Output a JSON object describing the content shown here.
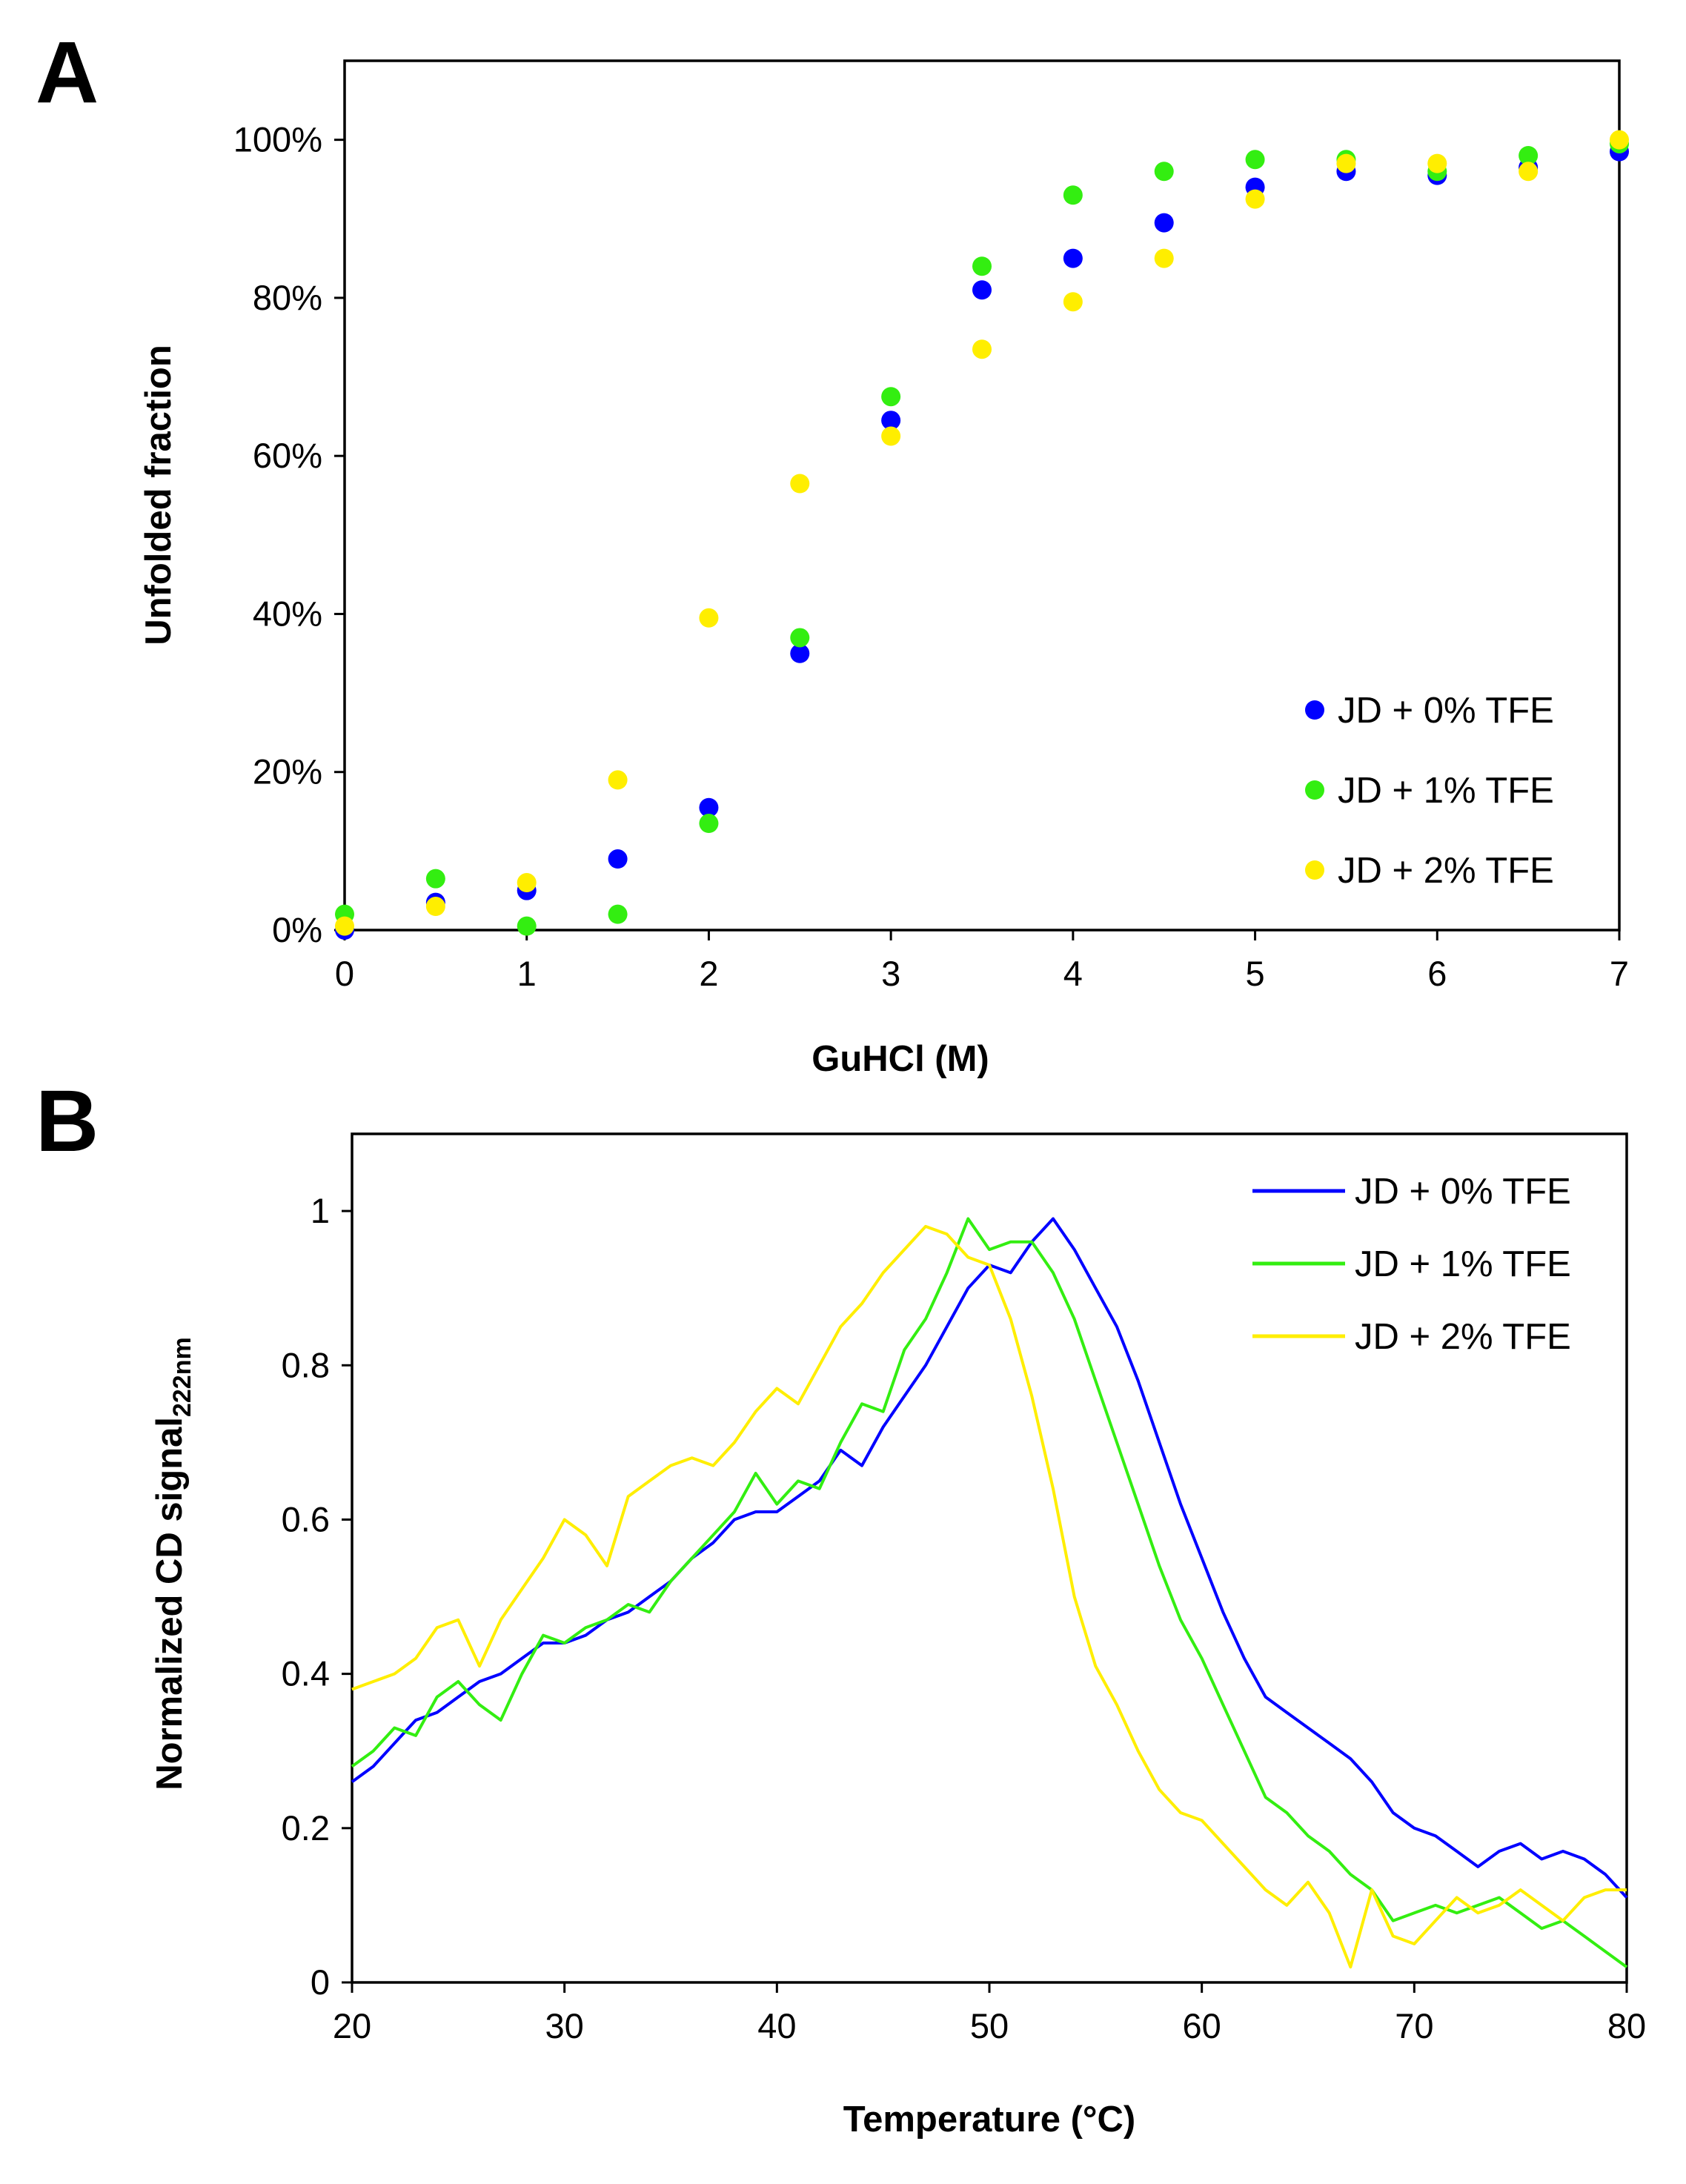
{
  "colors": {
    "blue": "#0000ff",
    "green": "#33ee11",
    "yellow": "#ffee00",
    "frame": "#000000"
  },
  "chart_data": [
    {
      "panel_label": "A",
      "type": "scatter",
      "xlabel": "GuHCl (M)",
      "ylabel": "Unfolded fraction",
      "xlim": [
        0,
        7
      ],
      "ylim": [
        0,
        1.1
      ],
      "x_ticks": [
        0,
        1,
        2,
        3,
        4,
        5,
        6,
        7
      ],
      "x_tick_labels": [
        "0",
        "1",
        "2",
        "3",
        "4",
        "5",
        "6",
        "7"
      ],
      "y_ticks": [
        0,
        0.2,
        0.4,
        0.6,
        0.8,
        1.0
      ],
      "y_tick_labels": [
        "0%",
        "20%",
        "40%",
        "60%",
        "80%",
        "100%"
      ],
      "grid": false,
      "legend_position": "bottom-right",
      "x": [
        0,
        0.5,
        1,
        1.5,
        2,
        2.5,
        3,
        3.5,
        4,
        4.5,
        5,
        5.5,
        6,
        6.5,
        7
      ],
      "series": [
        {
          "name": "JD + 0% TFE",
          "color": "blue",
          "values": [
            0.0,
            0.035,
            0.05,
            0.09,
            0.155,
            0.35,
            0.645,
            0.81,
            0.85,
            0.895,
            0.94,
            0.96,
            0.955,
            0.965,
            0.985
          ]
        },
        {
          "name": "JD + 1% TFE",
          "color": "green",
          "values": [
            0.02,
            0.065,
            0.005,
            0.02,
            0.135,
            0.37,
            0.675,
            0.84,
            0.93,
            0.96,
            0.975,
            0.975,
            0.96,
            0.98,
            0.995
          ]
        },
        {
          "name": "JD + 2% TFE",
          "color": "yellow",
          "values": [
            0.005,
            0.03,
            0.06,
            0.19,
            0.395,
            0.565,
            0.625,
            0.735,
            0.795,
            0.85,
            0.925,
            0.97,
            0.97,
            0.96,
            1.0
          ]
        }
      ]
    },
    {
      "panel_label": "B",
      "type": "line",
      "xlabel": "Temperature (°C)",
      "ylabel_main": "Normalized CD signal",
      "ylabel_sub": "222nm",
      "xlim": [
        20,
        80
      ],
      "ylim": [
        0,
        1.1
      ],
      "x_ticks": [
        20,
        30,
        40,
        50,
        60,
        70,
        80
      ],
      "x_tick_labels": [
        "20",
        "30",
        "40",
        "50",
        "60",
        "70",
        "80"
      ],
      "y_ticks": [
        0,
        0.2,
        0.4,
        0.6,
        0.8,
        1.0
      ],
      "y_tick_labels": [
        "0",
        "0.2",
        "0.4",
        "0.6",
        "0.8",
        "1"
      ],
      "grid": false,
      "legend_position": "top-right",
      "series": [
        {
          "name": "JD + 0% TFE",
          "color": "blue",
          "x": [
            20,
            21,
            22,
            23,
            24,
            25,
            26,
            27,
            28,
            29,
            30,
            31,
            32,
            33,
            34,
            35,
            36,
            37,
            38,
            39,
            40,
            41,
            42,
            43,
            44,
            45,
            46,
            47,
            48,
            49,
            50,
            51,
            52,
            53,
            54,
            55,
            56,
            57,
            58,
            59,
            60,
            61,
            62,
            63,
            64,
            65,
            66,
            67,
            68,
            69,
            70,
            71,
            72,
            73,
            74,
            75,
            76,
            77,
            78,
            79,
            80
          ],
          "y": [
            0.26,
            0.28,
            0.31,
            0.34,
            0.35,
            0.37,
            0.39,
            0.4,
            0.42,
            0.44,
            0.44,
            0.45,
            0.47,
            0.48,
            0.5,
            0.52,
            0.55,
            0.57,
            0.6,
            0.61,
            0.61,
            0.63,
            0.65,
            0.69,
            0.67,
            0.72,
            0.76,
            0.8,
            0.85,
            0.9,
            0.93,
            0.92,
            0.96,
            0.99,
            0.95,
            0.9,
            0.85,
            0.78,
            0.7,
            0.62,
            0.55,
            0.48,
            0.42,
            0.37,
            0.35,
            0.33,
            0.31,
            0.29,
            0.26,
            0.22,
            0.2,
            0.19,
            0.17,
            0.15,
            0.17,
            0.18,
            0.16,
            0.17,
            0.16,
            0.14,
            0.11
          ]
        },
        {
          "name": "JD + 1% TFE",
          "color": "green",
          "x": [
            20,
            21,
            22,
            23,
            24,
            25,
            26,
            27,
            28,
            29,
            30,
            31,
            32,
            33,
            34,
            35,
            36,
            37,
            38,
            39,
            40,
            41,
            42,
            43,
            44,
            45,
            46,
            47,
            48,
            49,
            50,
            51,
            52,
            53,
            54,
            55,
            56,
            57,
            58,
            59,
            60,
            61,
            62,
            63,
            64,
            65,
            66,
            67,
            68,
            69,
            70,
            71,
            72,
            73,
            74,
            75,
            76,
            77,
            78,
            79,
            80
          ],
          "y": [
            0.28,
            0.3,
            0.33,
            0.32,
            0.37,
            0.39,
            0.36,
            0.34,
            0.4,
            0.45,
            0.44,
            0.46,
            0.47,
            0.49,
            0.48,
            0.52,
            0.55,
            0.58,
            0.61,
            0.66,
            0.62,
            0.65,
            0.64,
            0.7,
            0.75,
            0.74,
            0.82,
            0.86,
            0.92,
            0.99,
            0.95,
            0.96,
            0.96,
            0.92,
            0.86,
            0.78,
            0.7,
            0.62,
            0.54,
            0.47,
            0.42,
            0.36,
            0.3,
            0.24,
            0.22,
            0.19,
            0.17,
            0.14,
            0.12,
            0.08,
            0.09,
            0.1,
            0.09,
            0.1,
            0.11,
            0.09,
            0.07,
            0.08,
            0.06,
            0.04,
            0.02
          ]
        },
        {
          "name": "JD + 2% TFE",
          "color": "yellow",
          "x": [
            20,
            21,
            22,
            23,
            24,
            25,
            26,
            27,
            28,
            29,
            30,
            31,
            32,
            33,
            34,
            35,
            36,
            37,
            38,
            39,
            40,
            41,
            42,
            43,
            44,
            45,
            46,
            47,
            48,
            49,
            50,
            51,
            52,
            53,
            54,
            55,
            56,
            57,
            58,
            59,
            60,
            61,
            62,
            63,
            64,
            65,
            66,
            67,
            68,
            69,
            70,
            71,
            72,
            73,
            74,
            75,
            76,
            77,
            78,
            79,
            80
          ],
          "y": [
            0.38,
            0.39,
            0.4,
            0.42,
            0.46,
            0.47,
            0.41,
            0.47,
            0.51,
            0.55,
            0.6,
            0.58,
            0.54,
            0.63,
            0.65,
            0.67,
            0.68,
            0.67,
            0.7,
            0.74,
            0.77,
            0.75,
            0.8,
            0.85,
            0.88,
            0.92,
            0.95,
            0.98,
            0.97,
            0.94,
            0.93,
            0.86,
            0.76,
            0.64,
            0.5,
            0.41,
            0.36,
            0.3,
            0.25,
            0.22,
            0.21,
            0.18,
            0.15,
            0.12,
            0.1,
            0.13,
            0.09,
            0.02,
            0.12,
            0.06,
            0.05,
            0.08,
            0.11,
            0.09,
            0.1,
            0.12,
            0.1,
            0.08,
            0.11,
            0.12,
            0.12
          ]
        }
      ]
    }
  ]
}
